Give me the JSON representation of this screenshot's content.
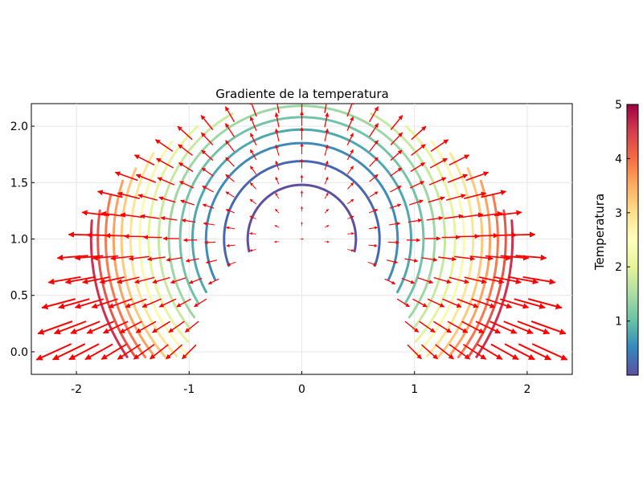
{
  "chart_data": {
    "type": "contour+quiver",
    "title": "Gradiente de la temperatura",
    "xlabel": "",
    "ylabel": "",
    "xlim": [
      -2.4,
      2.4
    ],
    "ylim": [
      -0.2,
      2.2
    ],
    "xticks": [
      {
        "value": -2,
        "label": "-2"
      },
      {
        "value": -1,
        "label": "-1"
      },
      {
        "value": 0,
        "label": "0"
      },
      {
        "value": 1,
        "label": "1"
      },
      {
        "value": 2,
        "label": "2"
      }
    ],
    "yticks": [
      {
        "value": 0.0,
        "label": "0.0"
      },
      {
        "value": 0.5,
        "label": "0.5"
      },
      {
        "value": 1.0,
        "label": "1.0"
      },
      {
        "value": 1.5,
        "label": "1.5"
      },
      {
        "value": 2.0,
        "label": "2.0"
      }
    ],
    "grid": true,
    "domain": {
      "shape": "half-annulus",
      "inner_radius": 1.0,
      "outer_radius": 2.2,
      "center": [
        0,
        1.0
      ]
    },
    "field_arrow_color": "#ff0000",
    "contours": [
      {
        "level": 0.3,
        "radius": 0.48,
        "color": "#5e4fa2"
      },
      {
        "level": 0.6,
        "radius": 0.69,
        "color": "#4667b0"
      },
      {
        "level": 0.9,
        "radius": 0.85,
        "color": "#3f8ab6"
      },
      {
        "level": 1.2,
        "radius": 0.97,
        "color": "#4fa8b0"
      },
      {
        "level": 1.5,
        "radius": 1.08,
        "color": "#72c3a7"
      },
      {
        "level": 1.8,
        "radius": 1.18,
        "color": "#9dd8a3"
      },
      {
        "level": 2.1,
        "radius": 1.27,
        "color": "#c6e89f"
      },
      {
        "level": 2.4,
        "radius": 1.36,
        "color": "#e6f49d"
      },
      {
        "level": 2.7,
        "radius": 1.44,
        "color": "#fbf8b0"
      },
      {
        "level": 3.0,
        "radius": 1.52,
        "color": "#fee593"
      },
      {
        "level": 3.3,
        "radius": 1.6,
        "color": "#fdc877"
      },
      {
        "level": 3.6,
        "radius": 1.67,
        "color": "#fba25f"
      },
      {
        "level": 3.9,
        "radius": 1.74,
        "color": "#f67a4d"
      },
      {
        "level": 4.2,
        "radius": 1.81,
        "color": "#e55649"
      },
      {
        "level": 4.5,
        "radius": 1.87,
        "color": "#cc3150"
      }
    ],
    "colorbar": {
      "label": "Temperatura",
      "min": 0.0,
      "max": 5.0,
      "ticks": [
        {
          "value": 1,
          "label": "1"
        },
        {
          "value": 2,
          "label": "2"
        },
        {
          "value": 3,
          "label": "3"
        },
        {
          "value": 4,
          "label": "4"
        },
        {
          "value": 5,
          "label": "5"
        }
      ],
      "colormap": [
        "#5e4fa2",
        "#3288bd",
        "#66c2a5",
        "#abdda4",
        "#e6f598",
        "#ffffbf",
        "#fee08b",
        "#fdae61",
        "#f46d43",
        "#d53e4f",
        "#9e0142"
      ]
    }
  }
}
